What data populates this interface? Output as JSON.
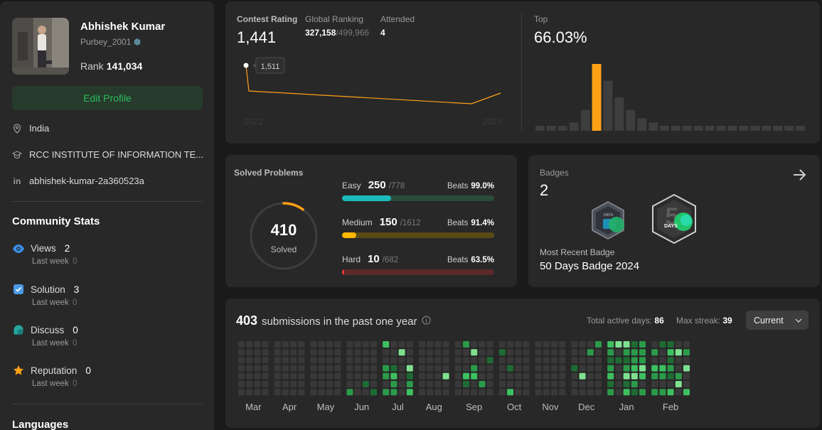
{
  "profile": {
    "name": "Abhishek Kumar",
    "handle": "Purbey_2001",
    "rank_label": "Rank",
    "rank_value": "141,034",
    "edit_label": "Edit Profile",
    "location": "India",
    "school": "RCC INSTITUTE OF INFORMATION TE...",
    "linkedin": "abhishek-kumar-2a360523a"
  },
  "community": {
    "title": "Community Stats",
    "stats": [
      {
        "label": "Views",
        "value": "2",
        "sub": "Last week",
        "sub_value": "0",
        "color": "#3b8eea"
      },
      {
        "label": "Solution",
        "value": "3",
        "sub": "Last week",
        "sub_value": "0",
        "color": "#4a9ae6"
      },
      {
        "label": "Discuss",
        "value": "0",
        "sub": "Last week",
        "sub_value": "0",
        "color": "#26a7a0"
      },
      {
        "label": "Reputation",
        "value": "0",
        "sub": "Last week",
        "sub_value": "0",
        "color": "#ffa116"
      }
    ]
  },
  "languages_title": "Languages",
  "contest": {
    "rating_label": "Contest Rating",
    "rating_value": "1,441",
    "global_label": "Global Ranking",
    "global_value": "327,158",
    "global_total": "/499,966",
    "attended_label": "Attended",
    "attended_value": "4",
    "tooltip": "1,511",
    "year_start": "2022",
    "year_end": "2023",
    "top_label": "Top",
    "top_value": "66.03%"
  },
  "chart_data": {
    "type": "bar",
    "title": "Top 66.03%",
    "values": [
      1,
      1,
      1,
      2,
      5,
      16,
      12,
      8,
      5,
      3,
      2,
      1,
      1,
      1,
      1,
      1,
      1,
      1,
      1,
      1,
      1,
      1,
      1,
      1
    ],
    "highlight_index": 5,
    "highlight_color": "#ffa116",
    "bar_color": "#3e3e3e"
  },
  "solved": {
    "title": "Solved Problems",
    "total": "410",
    "total_label": "Solved",
    "fraction": 0.1,
    "ring_color": "#ffa116",
    "levels": [
      {
        "name": "Easy",
        "solved": "250",
        "total": "/778",
        "beats_label": "Beats",
        "beats": "99.0%",
        "fraction": 0.321,
        "color": "#1cbaba",
        "track": "#2a4a3a"
      },
      {
        "name": "Medium",
        "solved": "150",
        "total": "/1612",
        "beats_label": "Beats",
        "beats": "91.4%",
        "fraction": 0.093,
        "color": "#ffb700",
        "track": "#5a4a16"
      },
      {
        "name": "Hard",
        "solved": "10",
        "total": "/682",
        "beats_label": "Beats",
        "beats": "63.5%",
        "fraction": 0.015,
        "color": "#f63737",
        "track": "#5a2a2a"
      }
    ]
  },
  "badges": {
    "title": "Badges",
    "count": "2",
    "recent_label": "Most Recent Badge",
    "recent_name": "50 Days Badge 2024",
    "badge1_text": "DAYS",
    "badge2_text": "DAYS"
  },
  "submissions": {
    "count": "403",
    "text": "submissions in the past one year",
    "active_label": "Total active days:",
    "active_value": "86",
    "streak_label": "Max streak:",
    "streak_value": "39",
    "dropdown": "Current",
    "months": [
      "Mar",
      "Apr",
      "May",
      "Jun",
      "Jul",
      "Aug",
      "Sep",
      "Oct",
      "Nov",
      "Dec",
      "Jan",
      "Feb"
    ]
  }
}
